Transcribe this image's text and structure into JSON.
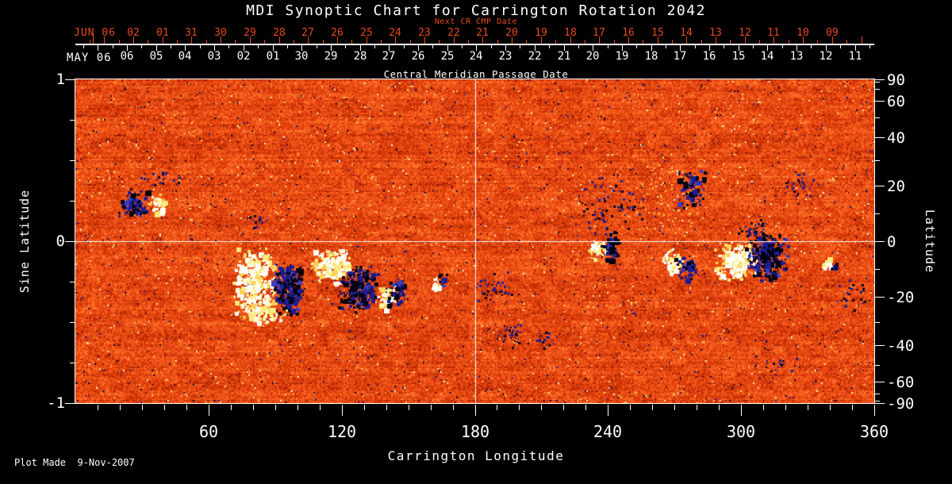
{
  "chart_data": {
    "type": "heatmap",
    "title": "MDI Synoptic Chart for Carrington Rotation 2042",
    "footer": "Plot Made  9-Nov-2007",
    "top_axis_red": {
      "name": "Next CR CMP Date",
      "color": "#e8491c",
      "month_label": "JUN 06",
      "day_labels": [
        "02",
        "01",
        "31",
        "30",
        "29",
        "28",
        "27",
        "26",
        "25",
        "24",
        "23",
        "22",
        "21",
        "20",
        "19",
        "18",
        "17",
        "16",
        "15",
        "14",
        "13",
        "12",
        "11",
        "10",
        "09"
      ]
    },
    "top_axis_cmp": {
      "axis_title": "Central Meridian Passage Date",
      "month_label": "MAY 06",
      "day_labels": [
        "06",
        "05",
        "04",
        "03",
        "02",
        "01",
        "30",
        "29",
        "28",
        "27",
        "26",
        "25",
        "24",
        "23",
        "22",
        "21",
        "20",
        "19",
        "18",
        "17",
        "16",
        "15",
        "14",
        "13",
        "12",
        "11"
      ]
    },
    "x_axis": {
      "title": "Carrington Longitude",
      "range_deg": [
        0,
        360
      ],
      "tick_labels": [
        "60",
        "120",
        "180",
        "240",
        "300",
        "360"
      ],
      "minor_step_deg": 10
    },
    "y_left": {
      "title": "Sine Latitude",
      "range": [
        -1,
        1
      ],
      "tick_labels": [
        "1",
        "0",
        "-1"
      ],
      "tick_values": [
        1,
        0,
        -1
      ],
      "minor_step": 0.25
    },
    "y_right": {
      "title": "Latitude",
      "tick_labels": [
        "90",
        "60",
        "40",
        "20",
        "0",
        "-20",
        "-40",
        "-60",
        "-90"
      ],
      "tick_values": [
        90,
        60,
        40,
        20,
        0,
        -20,
        -40,
        -60,
        -90
      ],
      "minor_step_deg": 10
    },
    "crosshair": {
      "longitude_deg": 180,
      "latitude_deg": 0
    },
    "colormap": {
      "value_color_stops": [
        [
          -1.0,
          "#000010"
        ],
        [
          -0.88,
          "#05051c"
        ],
        [
          -0.58,
          "#1d1d92"
        ],
        [
          -0.45,
          "#701000"
        ],
        [
          -0.3,
          "#a82300"
        ],
        [
          -0.12,
          "#d83a0a"
        ],
        [
          0.08,
          "#f25418"
        ],
        [
          0.3,
          "#ff7e30"
        ],
        [
          0.45,
          "#ffa74e"
        ],
        [
          0.62,
          "#ffd56c"
        ],
        [
          0.8,
          "#ffeda0"
        ],
        [
          1.0,
          "#fffef4"
        ]
      ],
      "negative_colors": [
        "#000010",
        "#1d1d92",
        "#3d3dbb"
      ],
      "positive_colors": [
        "#fffef4",
        "#ffe97c",
        "#ffcf55"
      ],
      "lace_colors": [
        "#ffd858",
        "#fff4c8"
      ],
      "grid_line_color": "#ffffff"
    },
    "features": [
      {
        "kind": "neg",
        "lon": 26,
        "sin_lat": 0.24,
        "w": 40,
        "h": 36,
        "density": 0.5
      },
      {
        "kind": "pos",
        "lon": 36.5,
        "sin_lat": 0.235,
        "w": 26,
        "h": 26,
        "density": 0.55
      },
      {
        "kind": "neg_speckle",
        "lon": 39,
        "sin_lat": 0.39,
        "w": 70,
        "h": 30,
        "density": 0.07
      },
      {
        "kind": "neg_speckle",
        "lon": 82,
        "sin_lat": 0.13,
        "w": 30,
        "h": 20,
        "density": 0.15
      },
      {
        "kind": "pos",
        "lon": 80.4,
        "sin_lat": -0.25,
        "w": 55,
        "h": 90,
        "density": 0.5
      },
      {
        "kind": "neg",
        "lon": 95.5,
        "sin_lat": -0.29,
        "w": 44,
        "h": 72,
        "density": 0.55
      },
      {
        "kind": "pos",
        "lon": 115.1,
        "sin_lat": -0.147,
        "w": 52,
        "h": 48,
        "density": 0.65
      },
      {
        "kind": "neg",
        "lon": 126.9,
        "sin_lat": -0.29,
        "w": 52,
        "h": 62,
        "density": 0.5
      },
      {
        "kind": "pos",
        "lon": 84,
        "sin_lat": -0.446,
        "w": 70,
        "h": 28,
        "density": 0.25
      },
      {
        "kind": "pos",
        "lon": 139.8,
        "sin_lat": -0.338,
        "w": 32,
        "h": 32,
        "density": 0.45
      },
      {
        "kind": "neg",
        "lon": 144.4,
        "sin_lat": -0.31,
        "w": 30,
        "h": 40,
        "density": 0.4
      },
      {
        "kind": "pos",
        "lon": 162,
        "sin_lat": -0.26,
        "w": 12,
        "h": 18,
        "density": 0.8
      },
      {
        "kind": "neg",
        "lon": 165.2,
        "sin_lat": -0.235,
        "w": 12,
        "h": 20,
        "density": 0.6
      },
      {
        "kind": "neg_speckle",
        "lon": 188.4,
        "sin_lat": -0.29,
        "w": 55,
        "h": 48,
        "density": 0.12
      },
      {
        "kind": "neg_speckle",
        "lon": 195.9,
        "sin_lat": -0.574,
        "w": 45,
        "h": 32,
        "density": 0.18
      },
      {
        "kind": "neg_speckle",
        "lon": 210.6,
        "sin_lat": -0.598,
        "w": 32,
        "h": 26,
        "density": 0.15
      },
      {
        "kind": "neg_speckle",
        "lon": 239.5,
        "sin_lat": 0.23,
        "w": 105,
        "h": 95,
        "density": 0.06
      },
      {
        "kind": "pos",
        "lon": 234.9,
        "sin_lat": -0.044,
        "w": 25,
        "h": 27,
        "density": 0.7
      },
      {
        "kind": "neg",
        "lon": 241,
        "sin_lat": -0.029,
        "w": 26,
        "h": 42,
        "density": 0.55
      },
      {
        "kind": "pos_lace",
        "lon": 268.1,
        "sin_lat": 0.255,
        "w": 90,
        "h": 105,
        "density": 0.05
      },
      {
        "kind": "neg",
        "lon": 277.4,
        "sin_lat": 0.328,
        "w": 38,
        "h": 58,
        "density": 0.3
      },
      {
        "kind": "pos",
        "lon": 268.9,
        "sin_lat": -0.118,
        "w": 28,
        "h": 32,
        "density": 0.55
      },
      {
        "kind": "neg",
        "lon": 274.2,
        "sin_lat": -0.157,
        "w": 28,
        "h": 32,
        "density": 0.45
      },
      {
        "kind": "pos",
        "lon": 297.8,
        "sin_lat": -0.118,
        "w": 58,
        "h": 52,
        "density": 0.6
      },
      {
        "kind": "neg",
        "lon": 311.4,
        "sin_lat": -0.093,
        "w": 55,
        "h": 68,
        "density": 0.6
      },
      {
        "kind": "neg_speckle",
        "lon": 304.6,
        "sin_lat": 0.074,
        "w": 42,
        "h": 26,
        "density": 0.2
      },
      {
        "kind": "neg_speckle",
        "lon": 326.8,
        "sin_lat": 0.348,
        "w": 42,
        "h": 42,
        "density": 0.12
      },
      {
        "kind": "pos",
        "lon": 338.2,
        "sin_lat": -0.132,
        "w": 15,
        "h": 15,
        "density": 0.8
      },
      {
        "kind": "neg",
        "lon": 341.8,
        "sin_lat": -0.147,
        "w": 10,
        "h": 12,
        "density": 0.6
      },
      {
        "kind": "neg_speckle",
        "lon": 349.7,
        "sin_lat": -0.333,
        "w": 42,
        "h": 48,
        "density": 0.1
      },
      {
        "kind": "neg_speckle",
        "lon": 315,
        "sin_lat": -0.76,
        "w": 75,
        "h": 32,
        "density": 0.06
      }
    ]
  }
}
